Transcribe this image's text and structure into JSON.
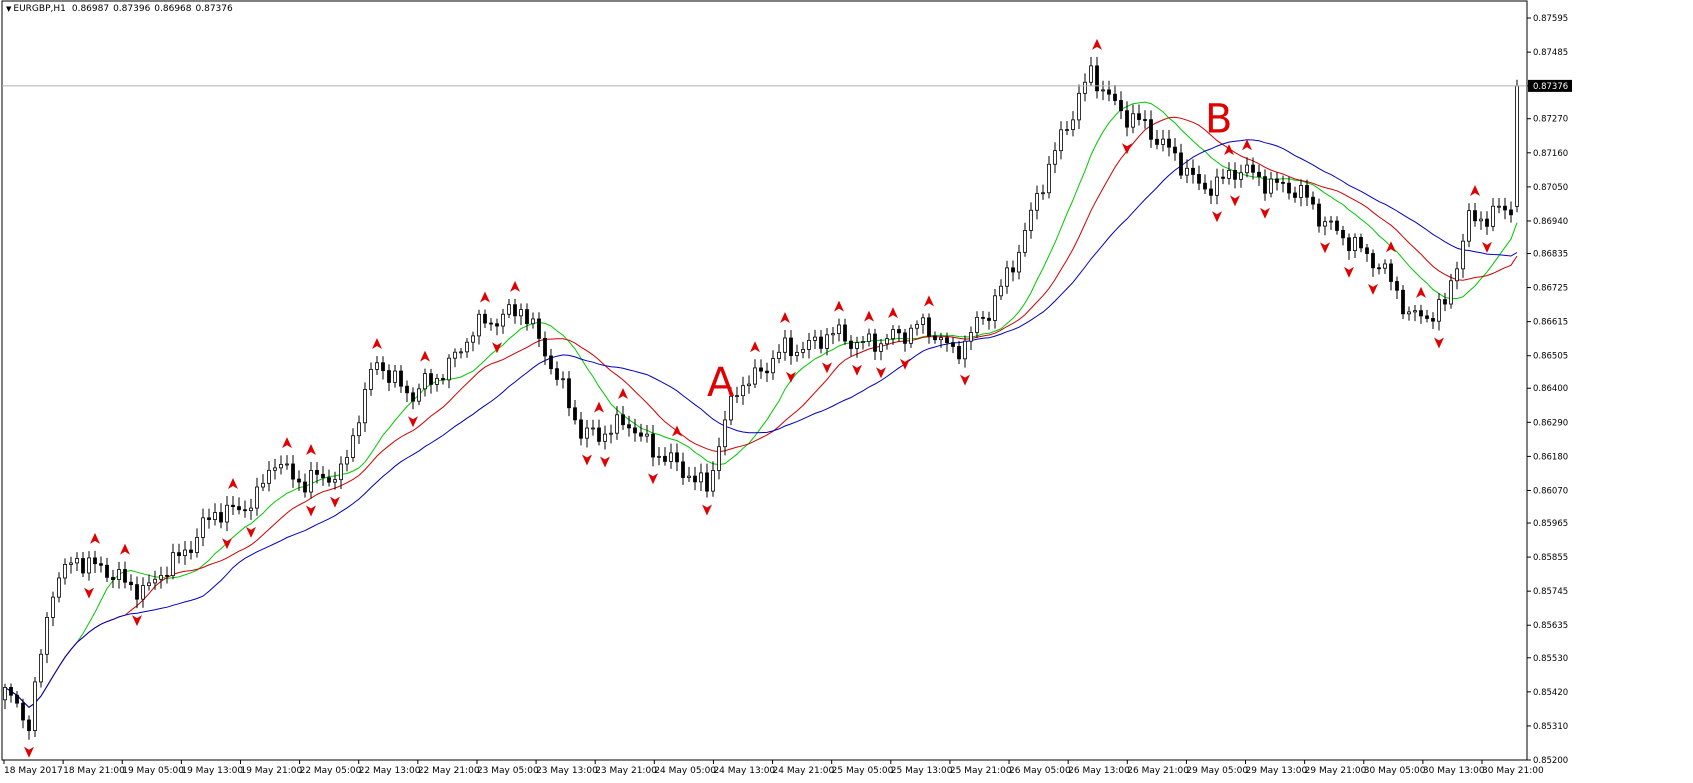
{
  "chart_data": {
    "type": "candlestick",
    "symbol": "EURGBP,H1",
    "ohlc_header": [
      "0.86987",
      "0.87396",
      "0.86968",
      "0.87376"
    ],
    "current_price": "0.87376",
    "ylim": [
      0.852,
      0.8765
    ],
    "y_ticks": [
      "0.87595",
      "0.87485",
      "0.87376",
      "0.87270",
      "0.87160",
      "0.87050",
      "0.86940",
      "0.86835",
      "0.86725",
      "0.86615",
      "0.86505",
      "0.86400",
      "0.86290",
      "0.86180",
      "0.86070",
      "0.85965",
      "0.85855",
      "0.85745",
      "0.85635",
      "0.85530",
      "0.85420",
      "0.85310",
      "0.85200"
    ],
    "x_labels": [
      "18 May 2017",
      "18 May 21:00",
      "19 May 05:00",
      "19 May 13:00",
      "19 May 21:00",
      "22 May 05:00",
      "22 May 13:00",
      "22 May 21:00",
      "23 May 05:00",
      "23 May 13:00",
      "23 May 21:00",
      "24 May 05:00",
      "24 May 13:00",
      "24 May 21:00",
      "25 May 05:00",
      "25 May 13:00",
      "25 May 21:00",
      "26 May 05:00",
      "26 May 13:00",
      "26 May 21:00",
      "29 May 05:00",
      "29 May 13:00",
      "29 May 21:00",
      "30 May 05:00",
      "30 May 13:00",
      "30 May 21:00"
    ],
    "annotations": [
      {
        "text": "A",
        "price": 0.8642,
        "candle": 119
      },
      {
        "text": "B",
        "price": 0.8727,
        "candle": 202
      }
    ],
    "anchors": [
      [
        0,
        0.8541
      ],
      [
        4,
        0.8533
      ],
      [
        8,
        0.8575
      ],
      [
        12,
        0.8586
      ],
      [
        18,
        0.8579
      ],
      [
        24,
        0.8575
      ],
      [
        28,
        0.8584
      ],
      [
        35,
        0.8599
      ],
      [
        42,
        0.8604
      ],
      [
        45,
        0.8617
      ],
      [
        50,
        0.8609
      ],
      [
        56,
        0.8613
      ],
      [
        62,
        0.8649
      ],
      [
        68,
        0.8637
      ],
      [
        74,
        0.8648
      ],
      [
        80,
        0.8662
      ],
      [
        86,
        0.8665
      ],
      [
        90,
        0.8653
      ],
      [
        96,
        0.8625
      ],
      [
        104,
        0.8628
      ],
      [
        112,
        0.8614
      ],
      [
        117,
        0.8609
      ],
      [
        122,
        0.864
      ],
      [
        130,
        0.8652
      ],
      [
        138,
        0.8657
      ],
      [
        146,
        0.8654
      ],
      [
        152,
        0.8661
      ],
      [
        158,
        0.8652
      ],
      [
        164,
        0.8664
      ],
      [
        170,
        0.869
      ],
      [
        176,
        0.8722
      ],
      [
        181,
        0.8741
      ],
      [
        187,
        0.8728
      ],
      [
        194,
        0.8718
      ],
      [
        199,
        0.8704
      ],
      [
        205,
        0.871
      ],
      [
        211,
        0.8707
      ],
      [
        217,
        0.8701
      ],
      [
        223,
        0.8688
      ],
      [
        229,
        0.8681
      ],
      [
        234,
        0.8663
      ],
      [
        240,
        0.8666
      ],
      [
        244,
        0.8695
      ],
      [
        251,
        0.8697
      ],
      [
        252,
        0.8737
      ]
    ],
    "ma_series": [
      {
        "color": "#00c800",
        "period": 13
      },
      {
        "color": "#d00000",
        "period": 21
      },
      {
        "color": "#0000c0",
        "period": 34
      }
    ],
    "fractal_color": "#e00000",
    "grid": false
  }
}
